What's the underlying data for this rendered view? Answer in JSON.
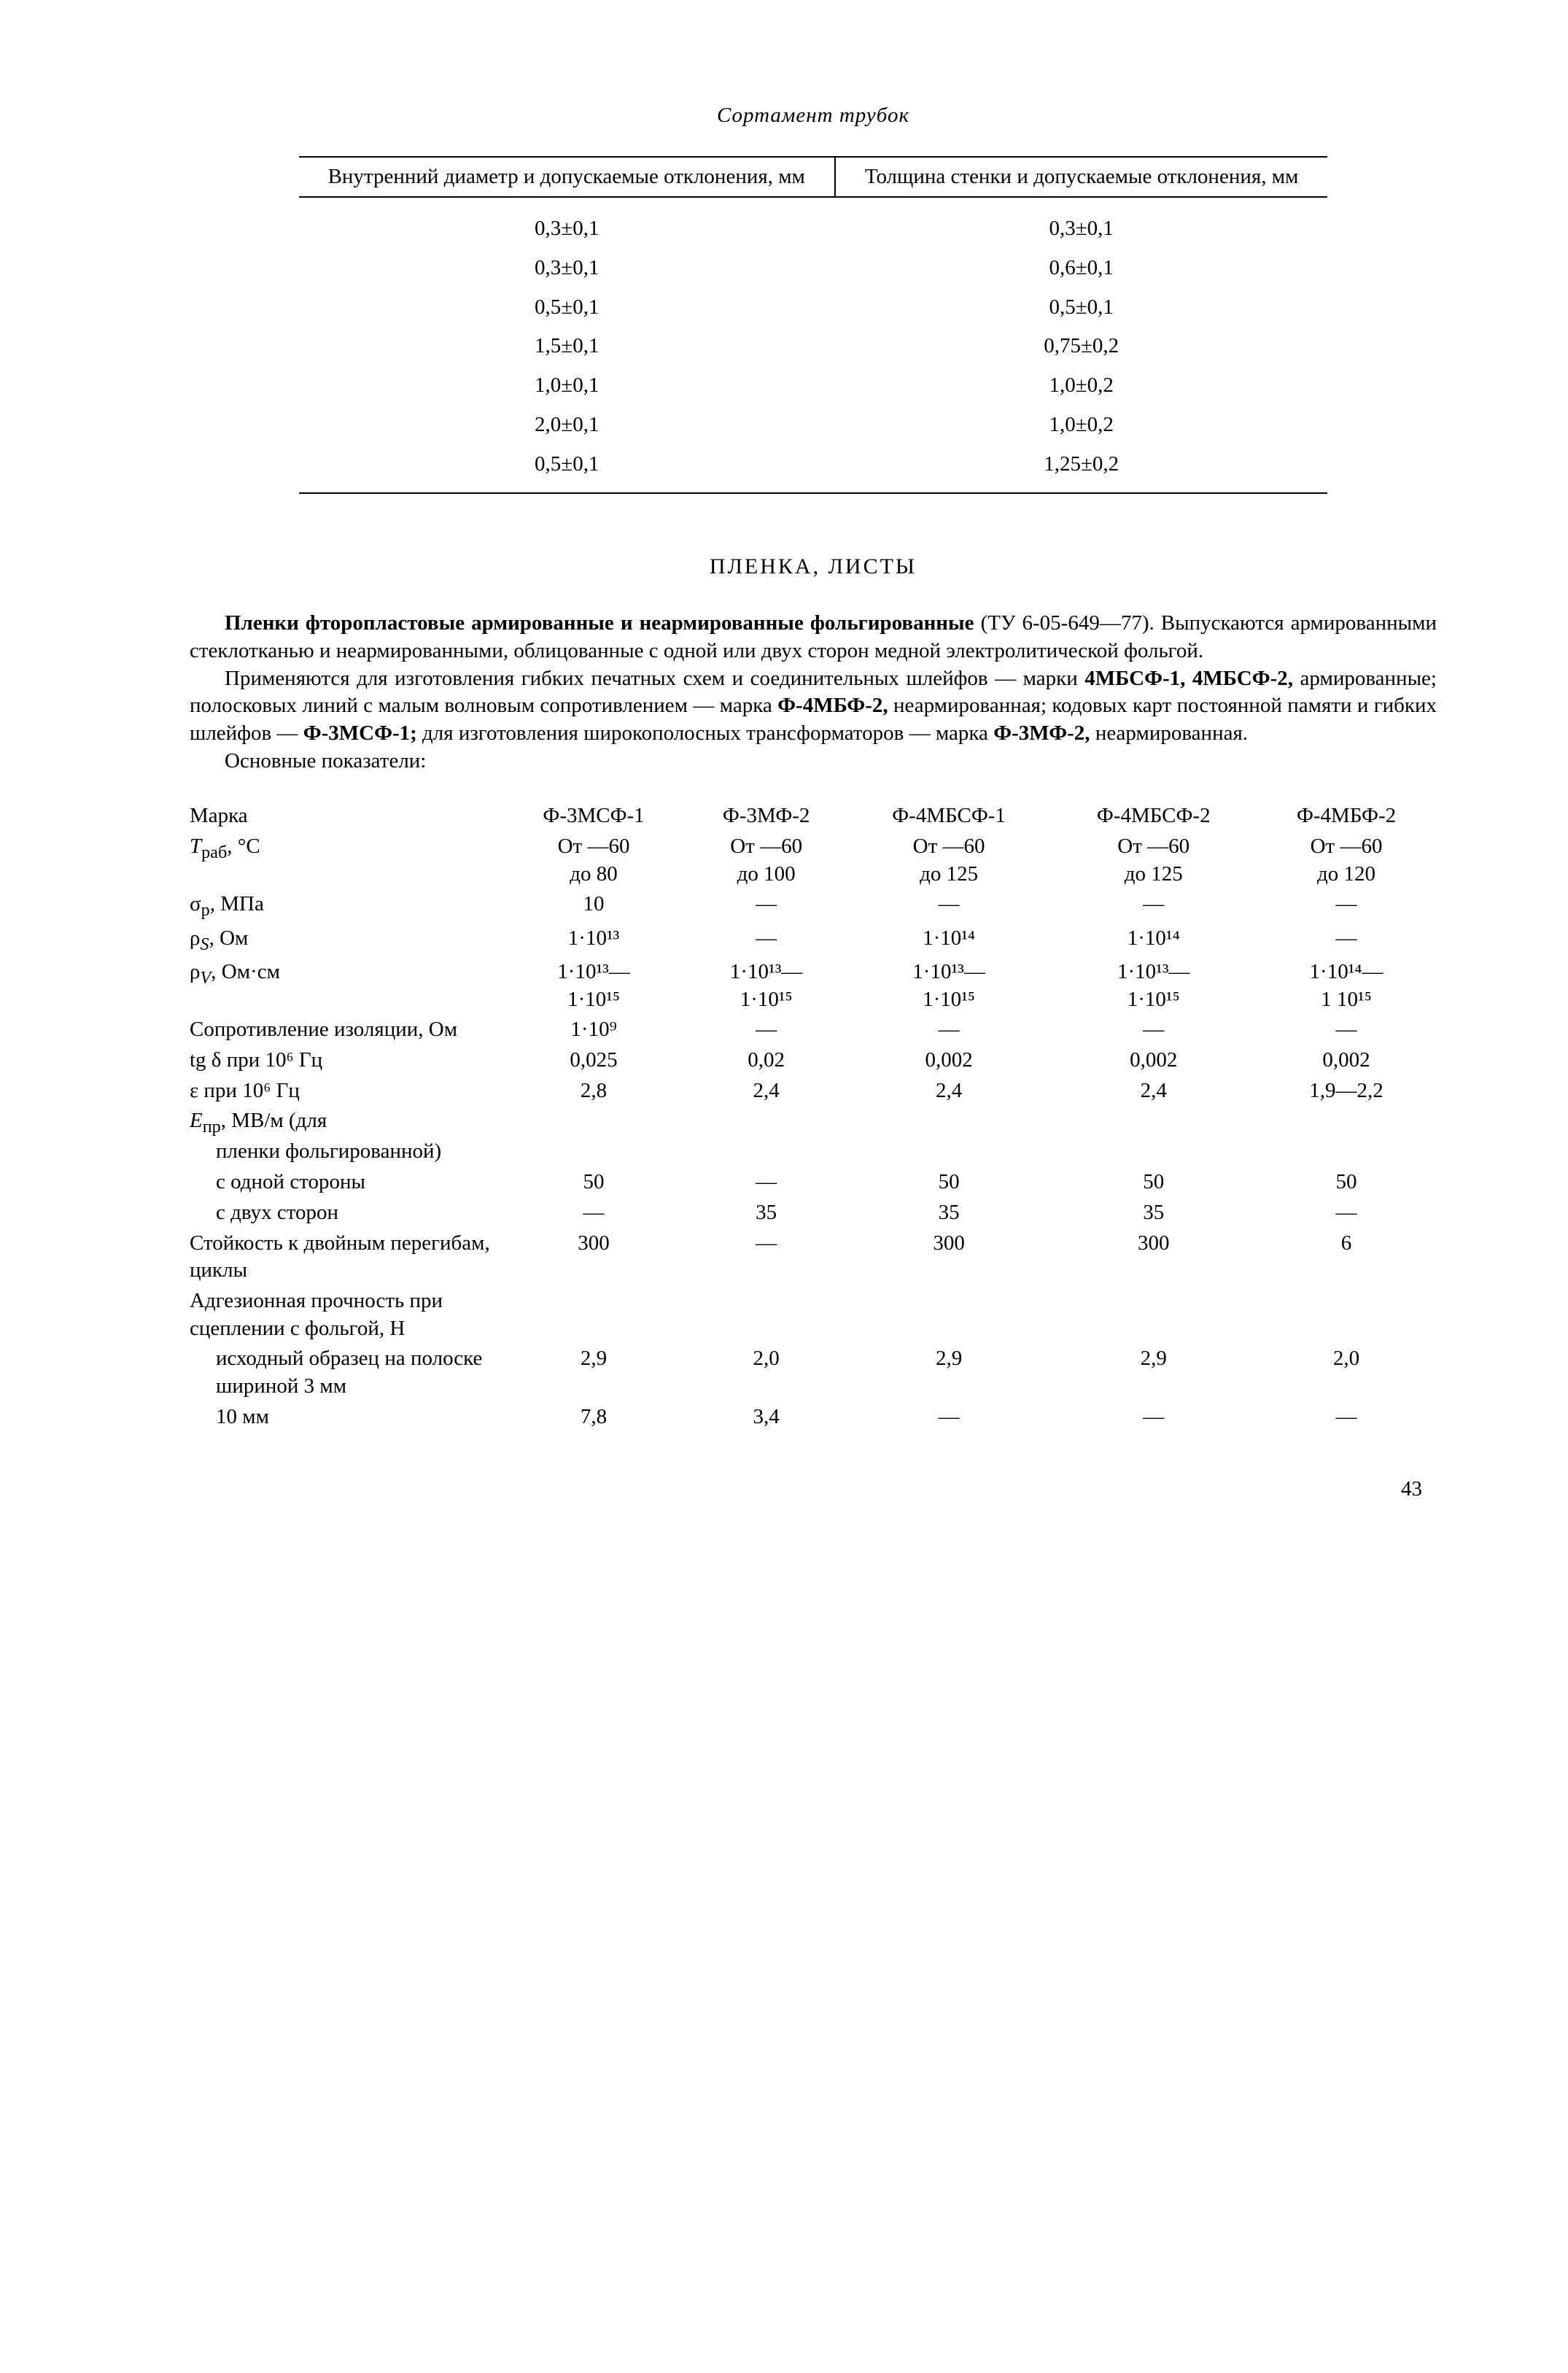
{
  "title1": "Сортамент трубок",
  "table1": {
    "head1": "Внутренний диаметр и допускае­мые отклонения, мм",
    "head2": "Толщина стенки и допускаемые отклонения, мм",
    "rows": [
      {
        "d": "0,3±0,1",
        "t": "0,3±0,1"
      },
      {
        "d": "0,3±0,1",
        "t": "0,6±0,1"
      },
      {
        "d": "0,5±0,1",
        "t": "0,5±0,1"
      },
      {
        "d": "1,5±0,1",
        "t": "0,75±0,2"
      },
      {
        "d": "1,0±0,1",
        "t": "1,0±0,2"
      },
      {
        "d": "2,0±0,1",
        "t": "1,0±0,2"
      },
      {
        "d": "0,5±0,1",
        "t": "1,25±0,2"
      }
    ]
  },
  "section": "ПЛЕНКА, ЛИСТЫ",
  "p1a": "Пленки фторопластовые армированные и неармированные фольгированные",
  "p1b": " (ТУ 6-05-649—77). Выпускаются армированными стеклотканью и неармирован­ными, облицованные с одной или двух сторон медной электролитической фольгой.",
  "p2a": "Применяются для изготовления гибких печатных схем и соединительных шлейфов — марки ",
  "p2b": "4МБСФ-1, 4МБСФ-2,",
  "p2c": " армированные; полосковых линий с ма­лым волновым сопротивлением — марка ",
  "p2d": "Ф-4МБФ-2,",
  "p2e": " неармированная; кодовых карт постоянной памяти и гибких шлейфов — ",
  "p2f": "Ф-3МСФ-1;",
  "p2g": " для изготовления широкополосных трансформаторов — марка ",
  "p2h": "Ф-3МФ-2,",
  "p2i": " неармированная.",
  "p3": "Основные показатели:",
  "params": {
    "heads": [
      "Марка",
      "Ф-3МСФ-1",
      "Ф-3МФ-2",
      "Ф-4МБСФ-1",
      "Ф-4МБСФ-2",
      "Ф-4МБФ-2"
    ],
    "trab_label": "Tраб, °C",
    "trab": [
      {
        "l1": "От —60",
        "l2": "до 80"
      },
      {
        "l1": "От —60",
        "l2": "до 100"
      },
      {
        "l1": "От —60",
        "l2": "до 125"
      },
      {
        "l1": "От —60",
        "l2": "до 125"
      },
      {
        "l1": "От —60",
        "l2": "до 120"
      }
    ],
    "sigma_label": "σр, МПа",
    "sigma": [
      "10",
      "—",
      "—",
      "—",
      "—"
    ],
    "rho_s_label": "ρS, Ом",
    "rho_s": [
      "1·10¹³",
      "—",
      "1·10¹⁴",
      "1·10¹⁴",
      "—"
    ],
    "rho_v_label": "ρV, Ом·см",
    "rho_v": [
      {
        "l1": "1·10¹³—",
        "l2": "1·10¹⁵"
      },
      {
        "l1": "1·10¹³—",
        "l2": "1·10¹⁵"
      },
      {
        "l1": "1·10¹³—",
        "l2": "1·10¹⁵"
      },
      {
        "l1": "1·10¹³—",
        "l2": "1·10¹⁵"
      },
      {
        "l1": "1·10¹⁴—",
        "l2": "1 10¹⁵"
      }
    ],
    "riso_label": "Сопротивление изоляции, Ом",
    "riso": [
      "1·10⁹",
      "—",
      "—",
      "—",
      "—"
    ],
    "tgd_label": "tg δ при 10⁶ Гц",
    "tgd": [
      "0,025",
      "0,02",
      "0,002",
      "0,002",
      "0,002"
    ],
    "eps_label": "ε при 10⁶ Гц",
    "eps": [
      "2,8",
      "2,4",
      "2,4",
      "2,4",
      "1,9—2,2"
    ],
    "epr_label": "Eпр, МВ/м (для",
    "epr_label2": "пленки фоль­гированной)",
    "side1_label": "с одной сто­роны",
    "side1": [
      "50",
      "—",
      "50",
      "50",
      "50"
    ],
    "side2_label": "с двух сторон",
    "side2": [
      "—",
      "35",
      "35",
      "35",
      "—"
    ],
    "bend_label": "Стойкость к двойным пере­гибам, циклы",
    "bend": [
      "300",
      "—",
      "300",
      "300",
      "6"
    ],
    "adh_label": "Адгезионная прочность при сцеплении с фольгой, Н",
    "adh1_label": "исходный об­разец на по­лоске шири­ной 3 мм",
    "adh1": [
      "2,9",
      "2,0",
      "2,9",
      "2,9",
      "2,0"
    ],
    "adh2_label": "10 мм",
    "adh2": [
      "7,8",
      "3,4",
      "—",
      "—",
      "—"
    ]
  },
  "page": "43"
}
